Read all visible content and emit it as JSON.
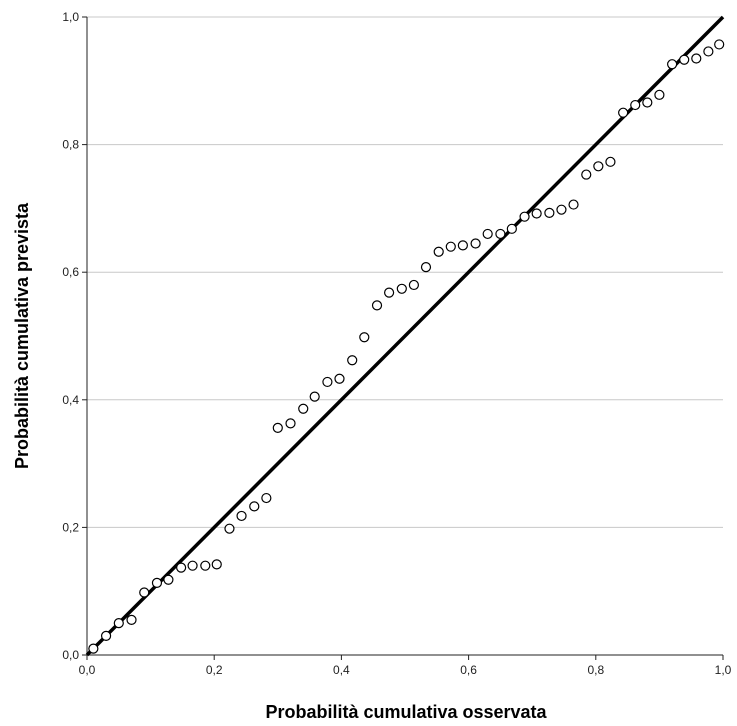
{
  "chart_data": {
    "type": "scatter",
    "title": "",
    "xlabel": "Probabilità cumulativa osservata",
    "ylabel": "Probabilità cumulativa prevista",
    "xlim": [
      0,
      1
    ],
    "ylim": [
      0,
      1
    ],
    "x_ticks": [
      "0,0",
      "0,2",
      "0,4",
      "0,6",
      "0,8",
      "1,0"
    ],
    "y_ticks": [
      "0,0",
      "0,2",
      "0,4",
      "0,6",
      "0,8",
      "1,0"
    ],
    "grid": "horizontal",
    "reference_line": {
      "x": [
        0,
        1
      ],
      "y": [
        0,
        1
      ]
    },
    "series": [
      {
        "marker": "open-circle",
        "points": [
          [
            0.01,
            0.01
          ],
          [
            0.03,
            0.03
          ],
          [
            0.05,
            0.05
          ],
          [
            0.07,
            0.055
          ],
          [
            0.09,
            0.098
          ],
          [
            0.11,
            0.113
          ],
          [
            0.128,
            0.118
          ],
          [
            0.148,
            0.137
          ],
          [
            0.166,
            0.14
          ],
          [
            0.186,
            0.14
          ],
          [
            0.204,
            0.142
          ],
          [
            0.224,
            0.198
          ],
          [
            0.243,
            0.218
          ],
          [
            0.263,
            0.233
          ],
          [
            0.282,
            0.246
          ],
          [
            0.3,
            0.356
          ],
          [
            0.32,
            0.363
          ],
          [
            0.34,
            0.386
          ],
          [
            0.358,
            0.405
          ],
          [
            0.378,
            0.428
          ],
          [
            0.397,
            0.433
          ],
          [
            0.417,
            0.462
          ],
          [
            0.436,
            0.498
          ],
          [
            0.456,
            0.548
          ],
          [
            0.475,
            0.568
          ],
          [
            0.495,
            0.574
          ],
          [
            0.514,
            0.58
          ],
          [
            0.533,
            0.608
          ],
          [
            0.553,
            0.632
          ],
          [
            0.572,
            0.64
          ],
          [
            0.591,
            0.642
          ],
          [
            0.611,
            0.645
          ],
          [
            0.63,
            0.66
          ],
          [
            0.65,
            0.66
          ],
          [
            0.668,
            0.668
          ],
          [
            0.688,
            0.687
          ],
          [
            0.707,
            0.692
          ],
          [
            0.727,
            0.693
          ],
          [
            0.746,
            0.698
          ],
          [
            0.765,
            0.706
          ],
          [
            0.785,
            0.753
          ],
          [
            0.804,
            0.766
          ],
          [
            0.823,
            0.773
          ],
          [
            0.843,
            0.85
          ],
          [
            0.862,
            0.862
          ],
          [
            0.881,
            0.866
          ],
          [
            0.9,
            0.878
          ],
          [
            0.92,
            0.926
          ],
          [
            0.939,
            0.933
          ],
          [
            0.958,
            0.935
          ],
          [
            0.977,
            0.946
          ],
          [
            0.994,
            0.957
          ]
        ]
      }
    ],
    "colors": {
      "axis": "#222222",
      "grid": "#c8c8c8",
      "line": "#000000",
      "marker": "#000000"
    }
  }
}
